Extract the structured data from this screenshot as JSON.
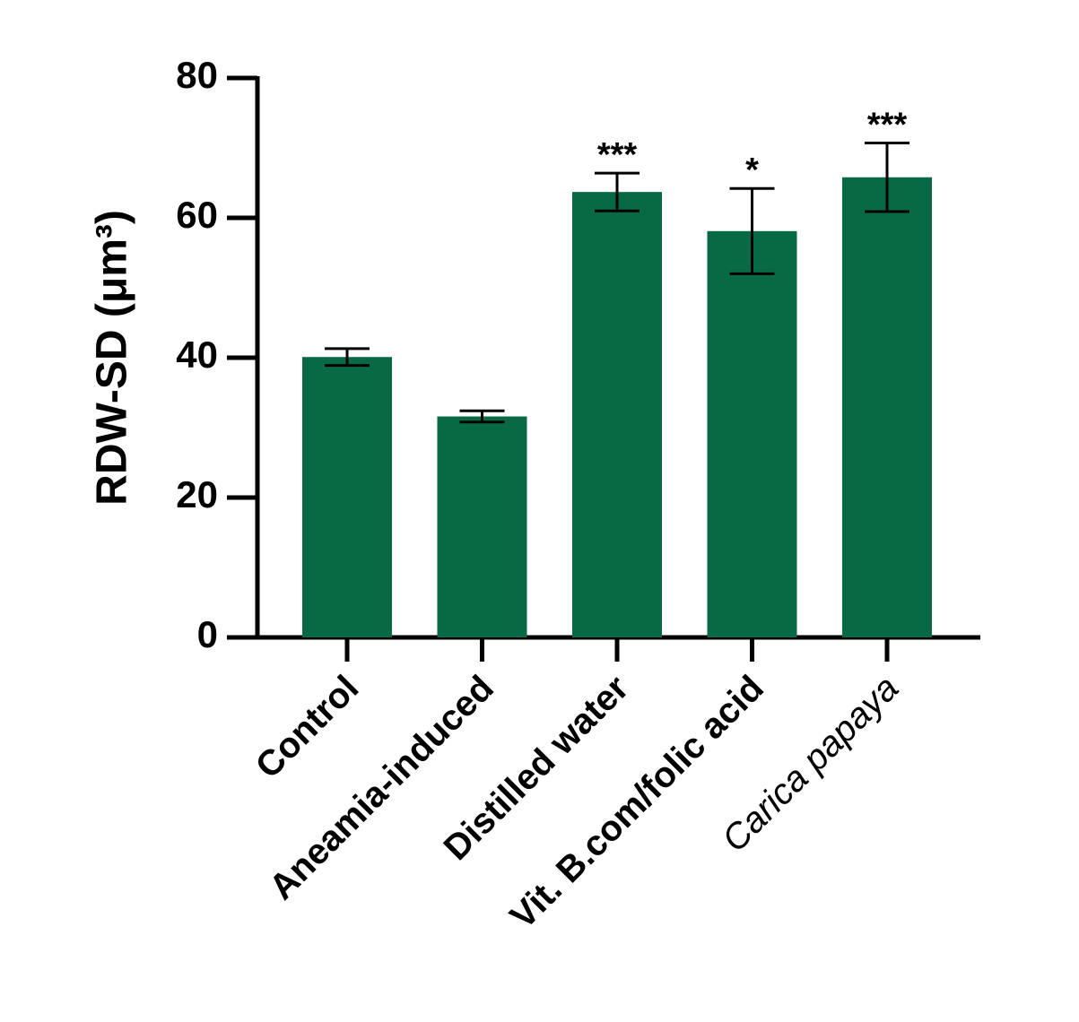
{
  "chart_data": {
    "type": "bar",
    "y_label": "RDW-SD (μm³)",
    "categories": [
      "Control",
      "Aneamia-induced",
      "Distilled water",
      "Vit. B.com/folic acid",
      "Carica papaya"
    ],
    "category_font_style": [
      "normal",
      "normal",
      "normal",
      "normal",
      "italic"
    ],
    "values": [
      40.1,
      31.6,
      63.7,
      58.1,
      65.8
    ],
    "errors": [
      1.2,
      0.8,
      2.7,
      6.1,
      4.9
    ],
    "significance": [
      null,
      null,
      "***",
      "*",
      "***"
    ],
    "color": "#086a45",
    "ylim": [
      0,
      80
    ],
    "yticks": [
      0,
      20,
      40,
      60,
      80
    ],
    "grid": false
  }
}
